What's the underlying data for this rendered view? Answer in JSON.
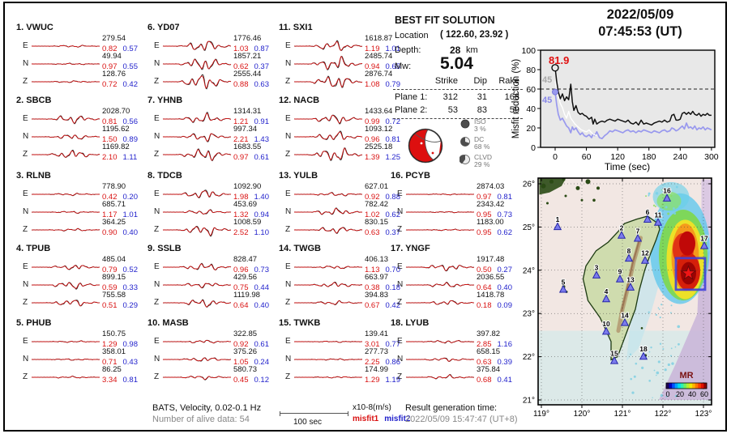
{
  "header": {
    "date": "2022/05/09",
    "time": "07:45:53  (UT)"
  },
  "solution": {
    "title": "BEST FIT SOLUTION",
    "location_label": "Location",
    "location_value": "( 122.60,  23.92 )",
    "depth_label": "Depth:",
    "depth_value": "28",
    "depth_unit": "km",
    "mw_label": "Mw:",
    "mw_value": "5.04",
    "table": {
      "headers": [
        "Strike",
        "Dip",
        "Rake"
      ],
      "rows": [
        {
          "label": "Plane 1:",
          "strike": "312",
          "dip": "31",
          "rake": "168"
        },
        {
          "label": "Plane 2:",
          "strike": "53",
          "dip": "83",
          "rake": "59"
        }
      ]
    },
    "decomposition": [
      {
        "name": "ISO",
        "percent": "3 %"
      },
      {
        "name": "DC",
        "percent": "68 %"
      },
      {
        "name": "CLVD",
        "percent": "29 %"
      }
    ]
  },
  "stations": [
    {
      "num": "1.",
      "name": "VWUC",
      "components": [
        [
          "E",
          "279.54",
          "0.82",
          "0.57",
          0.13
        ],
        [
          "N",
          "49.94",
          "0.97",
          "0.55",
          0.1
        ],
        [
          "Z",
          "128.76",
          "0.72",
          "0.42",
          0.12
        ]
      ]
    },
    {
      "num": "2.",
      "name": "SBCB",
      "components": [
        [
          "E",
          "2028.70",
          "0.81",
          "0.56",
          0.5
        ],
        [
          "N",
          "1195.62",
          "1.50",
          "0.89",
          0.35
        ],
        [
          "Z",
          "1169.82",
          "2.10",
          "1.11",
          0.55
        ]
      ]
    },
    {
      "num": "3.",
      "name": "RLNB",
      "components": [
        [
          "E",
          "778.90",
          "0.42",
          "0.20",
          0.15
        ],
        [
          "N",
          "685.71",
          "1.17",
          "1.01",
          0.12
        ],
        [
          "Z",
          "364.25",
          "0.90",
          "0.40",
          0.16
        ]
      ]
    },
    {
      "num": "4.",
      "name": "TPUB",
      "components": [
        [
          "E",
          "485.04",
          "0.79",
          "0.52",
          0.35
        ],
        [
          "N",
          "899.15",
          "0.59",
          "0.33",
          0.45
        ],
        [
          "Z",
          "755.58",
          "0.51",
          "0.29",
          0.42
        ]
      ]
    },
    {
      "num": "5.",
      "name": "PHUB",
      "components": [
        [
          "E",
          "150.75",
          "1.29",
          "0.98",
          0.1
        ],
        [
          "N",
          "358.01",
          "0.71",
          "0.43",
          0.1
        ],
        [
          "Z",
          "86.25",
          "3.34",
          "0.81",
          0.12
        ]
      ]
    },
    {
      "num": "6.",
      "name": "YD07",
      "components": [
        [
          "E",
          "1776.46",
          "1.03",
          "0.87",
          0.7
        ],
        [
          "N",
          "1857.21",
          "0.62",
          "0.37",
          0.85
        ],
        [
          "Z",
          "2555.44",
          "0.88",
          "0.63",
          1.0
        ]
      ]
    },
    {
      "num": "7.",
      "name": "YHNB",
      "components": [
        [
          "E",
          "1314.31",
          "1.21",
          "0.91",
          0.6
        ],
        [
          "N",
          "997.34",
          "2.21",
          "1.43",
          0.55
        ],
        [
          "Z",
          "1683.55",
          "0.97",
          "0.61",
          0.8
        ]
      ]
    },
    {
      "num": "8.",
      "name": "TDCB",
      "components": [
        [
          "E",
          "1092.90",
          "1.98",
          "1.40",
          0.6
        ],
        [
          "N",
          "453.69",
          "1.32",
          "0.94",
          0.3
        ],
        [
          "Z",
          "1008.59",
          "2.52",
          "1.10",
          0.65
        ]
      ]
    },
    {
      "num": "9.",
      "name": "SSLB",
      "components": [
        [
          "E",
          "828.47",
          "0.96",
          "0.73",
          0.5
        ],
        [
          "N",
          "429.56",
          "0.75",
          "0.44",
          0.35
        ],
        [
          "Z",
          "1119.98",
          "0.64",
          "0.40",
          0.5
        ]
      ]
    },
    {
      "num": "10.",
      "name": "MASB",
      "components": [
        [
          "E",
          "322.85",
          "0.92",
          "0.61",
          0.2
        ],
        [
          "N",
          "375.26",
          "1.05",
          "0.24",
          0.3
        ],
        [
          "Z",
          "580.73",
          "0.45",
          "0.12",
          0.25
        ]
      ]
    },
    {
      "num": "11.",
      "name": "SXI1",
      "components": [
        [
          "E",
          "1618.87",
          "1.19",
          "1.01",
          0.6
        ],
        [
          "N",
          "2485.74",
          "0.94",
          "0.65",
          0.85
        ],
        [
          "Z",
          "2876.74",
          "1.08",
          "0.79",
          0.9
        ]
      ]
    },
    {
      "num": "12.",
      "name": "NACB",
      "components": [
        [
          "E",
          "1433.64",
          "0.99",
          "0.72",
          0.6
        ],
        [
          "N",
          "1093.12",
          "0.96",
          "0.81",
          0.6
        ],
        [
          "Z",
          "2525.18",
          "1.39",
          "1.25",
          0.9
        ]
      ]
    },
    {
      "num": "13.",
      "name": "YULB",
      "components": [
        [
          "E",
          "627.01",
          "0.92",
          "0.88",
          0.25
        ],
        [
          "N",
          "782.42",
          "1.02",
          "0.62",
          0.45
        ],
        [
          "Z",
          "830.15",
          "0.63",
          "0.37",
          0.4
        ]
      ]
    },
    {
      "num": "14.",
      "name": "TWGB",
      "components": [
        [
          "E",
          "406.13",
          "1.13",
          "0.70",
          0.2
        ],
        [
          "N",
          "663.97",
          "0.38",
          "0.18",
          0.35
        ],
        [
          "Z",
          "394.83",
          "0.67",
          "0.42",
          0.25
        ]
      ]
    },
    {
      "num": "15.",
      "name": "TWKB",
      "components": [
        [
          "E",
          "139.41",
          "3.01",
          "0.77",
          0.08
        ],
        [
          "N",
          "277.73",
          "2.25",
          "0.86",
          0.1
        ],
        [
          "Z",
          "174.99",
          "1.29",
          "1.19",
          0.1
        ]
      ]
    },
    {
      "num": "16.",
      "name": "PCYB",
      "components": [
        [
          "E",
          "2874.03",
          "0.97",
          "0.81",
          0.07
        ],
        [
          "N",
          "2343.42",
          "0.95",
          "0.73",
          0.07
        ],
        [
          "Z",
          "1183.00",
          "0.95",
          "0.62",
          0.09
        ]
      ]
    },
    {
      "num": "17.",
      "name": "YNGF",
      "components": [
        [
          "E",
          "1917.48",
          "0.50",
          "0.27",
          0.45
        ],
        [
          "N",
          "2036.55",
          "0.64",
          "0.40",
          0.3
        ],
        [
          "Z",
          "1418.78",
          "0.18",
          "0.09",
          0.3
        ]
      ]
    },
    {
      "num": "18.",
      "name": "LYUB",
      "components": [
        [
          "E",
          "397.82",
          "2.85",
          "1.16",
          0.2
        ],
        [
          "N",
          "658.15",
          "0.63",
          "0.39",
          0.25
        ],
        [
          "Z",
          "375.84",
          "0.68",
          "0.41",
          0.25
        ]
      ]
    }
  ],
  "footer": {
    "filter_info": "BATS, Velocity, 0.02-0.1 Hz",
    "alive_data": "Number of alive data: 54",
    "scalebar_label": "100 sec",
    "amp_unit": "x10-8(m/s)",
    "misfit1_label": "misfit1",
    "misfit2_label": "misfit2",
    "result_time_label": "Result generation time:",
    "result_time_value": "2022/05/09 15:47:47 (UT+8)"
  },
  "colors": {
    "misfit1": "#d91111",
    "misfit2": "#2222cc",
    "observed": "#151515",
    "synthetic": "#cc1111",
    "highlight_red": "#e01010",
    "secondary_line": "#9999ee",
    "station_marker": "#7b7bed"
  },
  "chart_data": [
    {
      "type": "line",
      "xlabel": "Time (sec)",
      "ylabel": "Misfit reduction (%)",
      "xlim": [
        -28,
        300
      ],
      "ylim": [
        0,
        100
      ],
      "xticks": [
        0,
        60,
        120,
        180,
        240,
        300
      ],
      "yticks": [
        0,
        20,
        40,
        60,
        80,
        100
      ],
      "threshold_dashed_y": 60,
      "annotations": [
        {
          "text": "81.9",
          "color": "#e01010"
        },
        {
          "text": "45",
          "color": "#aaaaaa"
        },
        {
          "text": "45",
          "color": "#8888e8"
        }
      ],
      "series": [
        {
          "name": "misfit-reduction-best",
          "color": "#111111",
          "start_marker": "open-circle",
          "x": [
            0,
            3,
            6,
            10,
            14,
            18,
            22,
            26,
            30,
            33,
            36,
            40,
            44,
            48,
            52,
            56,
            60,
            65,
            70,
            73,
            76,
            80,
            85,
            90,
            95,
            100,
            105,
            110,
            115,
            120,
            125,
            130,
            135,
            140,
            145,
            150,
            155,
            160,
            165,
            170,
            175,
            180,
            185,
            190,
            195,
            200,
            205,
            210,
            215,
            220,
            224,
            228,
            232,
            236,
            240,
            244,
            248,
            252,
            256,
            260,
            264,
            268,
            272,
            276,
            280,
            284,
            288,
            292,
            296,
            300
          ],
          "y": [
            81.9,
            68,
            57,
            50,
            55,
            48,
            52,
            49,
            65,
            47,
            38,
            43,
            36,
            34,
            35,
            33,
            32,
            29,
            31,
            24,
            29,
            24,
            26,
            27,
            26,
            28,
            29,
            28,
            27,
            29,
            28,
            27,
            26,
            28,
            25,
            24,
            26,
            23,
            28,
            24,
            25,
            24,
            23,
            25,
            26,
            27,
            26,
            28,
            26,
            27,
            33,
            34,
            28,
            28,
            29,
            35,
            36,
            34,
            36,
            34,
            37,
            34,
            33,
            35,
            32,
            34,
            33,
            35,
            33,
            33
          ]
        },
        {
          "name": "misfit-reduction-white",
          "color": "#ffffff",
          "x": [
            0,
            3,
            6,
            10,
            14,
            18,
            22,
            26,
            30,
            34,
            38,
            42,
            46,
            50,
            55,
            60,
            65,
            70,
            75,
            80
          ],
          "y": [
            68,
            60,
            53,
            45,
            41,
            34,
            30,
            37,
            30,
            27,
            24,
            22,
            20,
            18,
            17,
            16,
            18,
            15,
            13,
            12
          ]
        },
        {
          "name": "misfit-reduction-secondary",
          "color": "#9999ee",
          "start_marker": "filled-circle",
          "x": [
            0,
            3,
            6,
            10,
            14,
            18,
            22,
            26,
            30,
            33,
            36,
            40,
            44,
            48,
            52,
            56,
            60,
            65,
            70,
            73,
            76,
            80,
            85,
            90,
            95,
            100,
            105,
            110,
            115,
            120,
            125,
            130,
            135,
            140,
            145,
            150,
            155,
            160,
            165,
            170,
            175,
            180,
            185,
            190,
            195,
            200,
            205,
            210,
            215,
            220,
            224,
            228,
            232,
            236,
            240,
            244,
            248,
            252,
            256,
            260,
            264,
            268,
            272,
            276,
            280,
            284,
            288,
            292,
            296,
            300
          ],
          "y": [
            57,
            44,
            34,
            28,
            30,
            26,
            22,
            20,
            15,
            21,
            18,
            20,
            16,
            13,
            15,
            12,
            11,
            13,
            10,
            14,
            12,
            16,
            10,
            9,
            12,
            14,
            17,
            16,
            18,
            17,
            16,
            15,
            17,
            18,
            16,
            17,
            15,
            17,
            16,
            18,
            17,
            16,
            15,
            17,
            16,
            15,
            17,
            18,
            16,
            17,
            20,
            19,
            17,
            18,
            20,
            22,
            19,
            25,
            20,
            21,
            19,
            22,
            18,
            20,
            19,
            21,
            18,
            20,
            19,
            18
          ]
        }
      ]
    },
    {
      "type": "map",
      "region": {
        "lon_min": 119,
        "lon_max": 123,
        "lat_min": 21,
        "lat_max": 26
      },
      "lon_tick_labels": [
        "119°",
        "120°",
        "121°",
        "122°",
        "123°"
      ],
      "lat_tick_labels": [
        "26°",
        "25°",
        "24°",
        "23°",
        "22°",
        "21°"
      ],
      "stations": [
        {
          "id": "1",
          "lon": 119.4,
          "lat": 25.0
        },
        {
          "id": "2",
          "lon": 120.98,
          "lat": 24.8
        },
        {
          "id": "3",
          "lon": 120.36,
          "lat": 23.88
        },
        {
          "id": "4",
          "lon": 120.6,
          "lat": 23.33
        },
        {
          "id": "5",
          "lon": 119.54,
          "lat": 23.55
        },
        {
          "id": "6",
          "lon": 121.62,
          "lat": 25.17
        },
        {
          "id": "7",
          "lon": 121.38,
          "lat": 24.73
        },
        {
          "id": "8",
          "lon": 121.16,
          "lat": 24.27
        },
        {
          "id": "9",
          "lon": 120.94,
          "lat": 23.79
        },
        {
          "id": "10",
          "lon": 120.6,
          "lat": 22.58
        },
        {
          "id": "11",
          "lon": 121.88,
          "lat": 25.1
        },
        {
          "id": "12",
          "lon": 121.56,
          "lat": 24.22
        },
        {
          "id": "13",
          "lon": 121.2,
          "lat": 23.6
        },
        {
          "id": "14",
          "lon": 121.06,
          "lat": 22.78
        },
        {
          "id": "15",
          "lon": 120.8,
          "lat": 21.9
        },
        {
          "id": "16",
          "lon": 122.1,
          "lat": 25.66
        },
        {
          "id": "17",
          "lon": 123.02,
          "lat": 24.56
        },
        {
          "id": "18",
          "lon": 121.52,
          "lat": 22.0
        }
      ],
      "epicenter": {
        "lon": 122.63,
        "lat": 23.93,
        "marker": "red-star"
      },
      "focus_box": {
        "lon_min": 122.32,
        "lon_max": 123.04,
        "lat_min": 23.55,
        "lat_max": 24.28
      },
      "colorbar": {
        "label": "MR",
        "tick_labels": [
          "0",
          "20",
          "40",
          "60"
        ]
      }
    }
  ]
}
